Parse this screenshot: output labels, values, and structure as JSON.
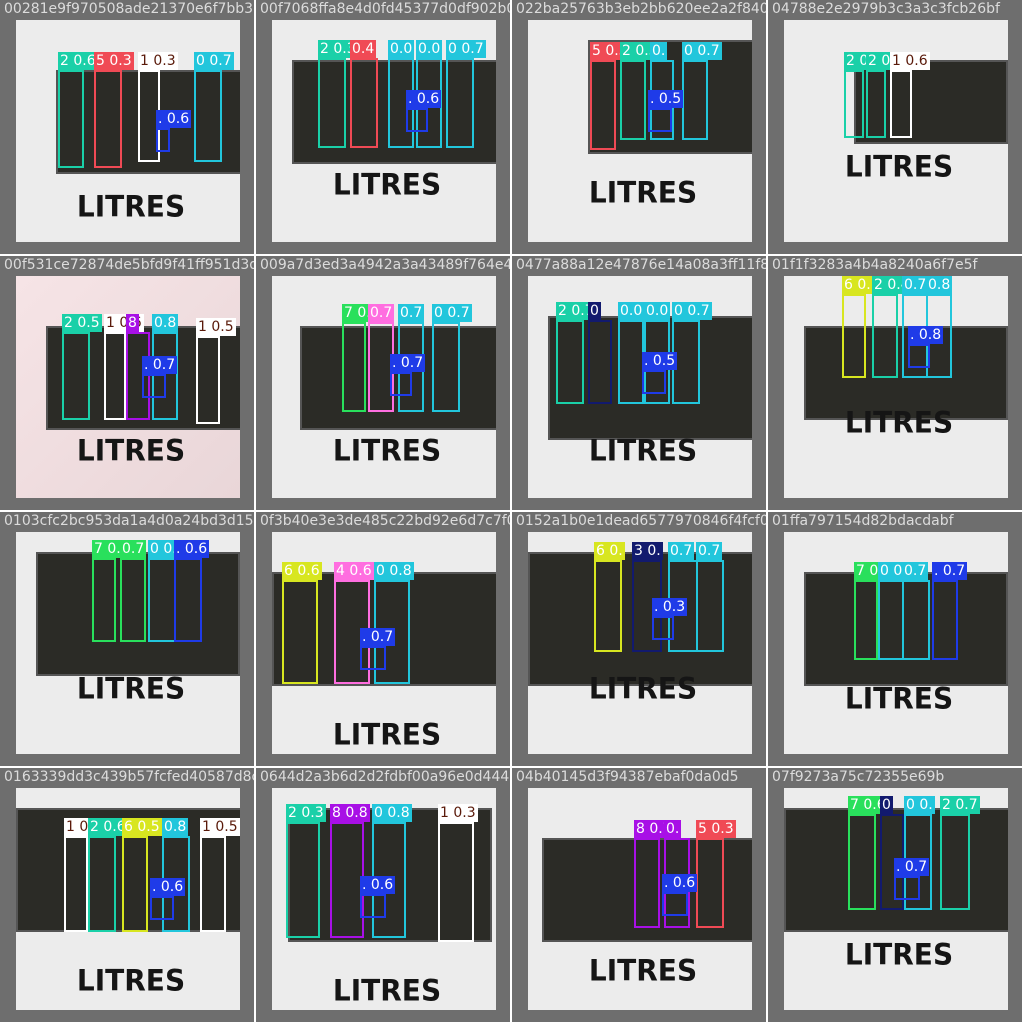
{
  "title": "",
  "colors": {
    "cls_2": "#1ad0a8",
    "cls_5": "#f04a55",
    "cls_1": "#ffffff",
    "cls_0": "#22c6dc",
    "cls_dot": "#1f3be8",
    "cls_4": "#ff6ee0",
    "cls_6": "#d8e620",
    "cls_7": "#29e05c",
    "cls_8": "#a810e6",
    "cls_3": "#121a6e"
  },
  "tiles": [
    {
      "filename": "00281e9f970508ade21370e6f7bb318144c84d",
      "litres": "LITRES",
      "tags": [
        {
          "text": "2 0.6",
          "color": "cls_2"
        },
        {
          "text": "5 0.3",
          "color": "cls_5"
        },
        {
          "text": "1 0.3",
          "color": "cls_1"
        },
        {
          "text": "0 0.7",
          "color": "cls_0"
        },
        {
          "text": ". 0.6",
          "color": "cls_dot"
        }
      ]
    },
    {
      "filename": "00f7068ffa8e4d0fd45377d0df902b0257",
      "litres": "LITRES",
      "tags": [
        {
          "text": "2 0.3",
          "color": "cls_2"
        },
        {
          "text": "0.4",
          "color": "cls_5"
        },
        {
          "text": "0.0",
          "color": "cls_0"
        },
        {
          "text": "0.0",
          "color": "cls_0"
        },
        {
          "text": "0 0.7",
          "color": "cls_0"
        },
        {
          "text": ". 0.6",
          "color": "cls_dot"
        }
      ]
    },
    {
      "filename": "022ba25763b3eb2bb620ee2a2f840d4d890",
      "litres": "LITRES",
      "tags": [
        {
          "text": "5 0.3",
          "color": "cls_5"
        },
        {
          "text": "2 0.5",
          "color": "cls_2"
        },
        {
          "text": "0.",
          "color": "cls_0"
        },
        {
          "text": "0 0.7",
          "color": "cls_0"
        },
        {
          "text": ". 0.5",
          "color": "cls_dot"
        }
      ]
    },
    {
      "filename": "04788e2e2979b3c3a3c3fcb26bf",
      "litres": "LITRES",
      "tags": [
        {
          "text": "2 0.7",
          "color": "cls_2"
        },
        {
          "text": "2 0.5",
          "color": "cls_2"
        },
        {
          "text": "1 0.6",
          "color": "cls_1"
        }
      ]
    },
    {
      "filename": "00f531ce72874de5bfd9f41ff951d3d4d9a7d",
      "litres": "LITRES",
      "tags": [
        {
          "text": "2 0.5",
          "color": "cls_2"
        },
        {
          "text": "1 0.6",
          "color": "cls_1"
        },
        {
          "text": "8",
          "color": "cls_8"
        },
        {
          "text": "0.8",
          "color": "cls_0"
        },
        {
          "text": "1 0.5",
          "color": "cls_1"
        },
        {
          "text": ". 0.7",
          "color": "cls_dot"
        }
      ]
    },
    {
      "filename": "009a7d3ed3a4942a3a43489f764e40bfa",
      "litres": "LITRES",
      "tags": [
        {
          "text": "7 0.6",
          "color": "cls_7"
        },
        {
          "text": "0.7",
          "color": "cls_4"
        },
        {
          "text": "0.7",
          "color": "cls_0"
        },
        {
          "text": "0 0.7",
          "color": "cls_0"
        },
        {
          "text": ". 0.7",
          "color": "cls_dot"
        }
      ]
    },
    {
      "filename": "0477a88a12e47876e14a08a3ff11f8820b4",
      "litres": "LITRES",
      "tags": [
        {
          "text": "2 0.7",
          "color": "cls_2"
        },
        {
          "text": "0",
          "color": "cls_3"
        },
        {
          "text": "0.0",
          "color": "cls_0"
        },
        {
          "text": "0.0",
          "color": "cls_0"
        },
        {
          "text": "0 0.7",
          "color": "cls_0"
        },
        {
          "text": ". 0.5",
          "color": "cls_dot"
        }
      ]
    },
    {
      "filename": "01f1f3283a4b4a8240a6f7e5f",
      "litres": "LITRES",
      "tags": [
        {
          "text": "6 0.",
          "color": "cls_6"
        },
        {
          "text": "2 0.4",
          "color": "cls_2"
        },
        {
          "text": "0.7",
          "color": "cls_0"
        },
        {
          "text": "0.8",
          "color": "cls_0"
        },
        {
          "text": ". 0.8",
          "color": "cls_dot"
        }
      ]
    },
    {
      "filename": "0103cfc2bc953da1a4d0a24bd3d15d7c9a7",
      "litres": "LITRES",
      "tags": [
        {
          "text": "7 0.5",
          "color": "cls_7"
        },
        {
          "text": "0.7",
          "color": "cls_7"
        },
        {
          "text": "0 0.7",
          "color": "cls_0"
        },
        {
          "text": ". 0.6",
          "color": "cls_dot"
        }
      ]
    },
    {
      "filename": "0f3b40e3e3de485c22bd92e6d7c7f0fd",
      "litres": "LITRES",
      "tags": [
        {
          "text": "6 0.6",
          "color": "cls_6"
        },
        {
          "text": "4 0.6",
          "color": "cls_4"
        },
        {
          "text": "0 0.8",
          "color": "cls_0"
        },
        {
          "text": ". 0.7",
          "color": "cls_dot"
        }
      ]
    },
    {
      "filename": "0152a1b0e1dead6577970846f4fcf08",
      "litres": "LITRES",
      "tags": [
        {
          "text": "6 0.",
          "color": "cls_6"
        },
        {
          "text": "3 0.",
          "color": "cls_3"
        },
        {
          "text": "0.7",
          "color": "cls_0"
        },
        {
          "text": "0.7",
          "color": "cls_0"
        },
        {
          "text": ". 0.3",
          "color": "cls_dot"
        }
      ]
    },
    {
      "filename": "01ffa797154d82bdacdabf",
      "litres": "LITRES",
      "tags": [
        {
          "text": "7 0.7",
          "color": "cls_7"
        },
        {
          "text": "0 0.7",
          "color": "cls_0"
        },
        {
          "text": "0.7",
          "color": "cls_0"
        },
        {
          "text": ". 0.7",
          "color": "cls_dot"
        }
      ]
    },
    {
      "filename": "0163339dd3c439b57fcfed40587d8c9d8c8",
      "litres": "LITRES",
      "tags": [
        {
          "text": "1 0.",
          "color": "cls_1"
        },
        {
          "text": "2 0.6",
          "color": "cls_2"
        },
        {
          "text": "6 0.5",
          "color": "cls_6"
        },
        {
          "text": "0.8",
          "color": "cls_0"
        },
        {
          "text": "1 0.5",
          "color": "cls_1"
        },
        {
          "text": ". 0.6",
          "color": "cls_dot"
        }
      ]
    },
    {
      "filename": "0644d2a3b6d2d2fdbf00a96e0d4442940f",
      "litres": "LITRES",
      "tags": [
        {
          "text": "2 0.3",
          "color": "cls_2"
        },
        {
          "text": "8 0.8",
          "color": "cls_8"
        },
        {
          "text": "0 0.8",
          "color": "cls_0"
        },
        {
          "text": "1 0.3",
          "color": "cls_1"
        },
        {
          "text": ". 0.6",
          "color": "cls_dot"
        }
      ]
    },
    {
      "filename": "04b40145d3f94387ebaf0da0d5",
      "litres": "LITRES",
      "tags": [
        {
          "text": "8 0.7",
          "color": "cls_8"
        },
        {
          "text": "0.",
          "color": "cls_8"
        },
        {
          "text": "5 0.3",
          "color": "cls_5"
        },
        {
          "text": ". 0.6",
          "color": "cls_dot"
        }
      ]
    },
    {
      "filename": "07f9273a75c72355e69b",
      "litres": "LITRES",
      "tags": [
        {
          "text": "7 0.6",
          "color": "cls_7"
        },
        {
          "text": "0",
          "color": "cls_3"
        },
        {
          "text": "0 0.",
          "color": "cls_0"
        },
        {
          "text": "2 0.7",
          "color": "cls_2"
        },
        {
          "text": ". 0.7",
          "color": "cls_dot"
        }
      ]
    }
  ]
}
